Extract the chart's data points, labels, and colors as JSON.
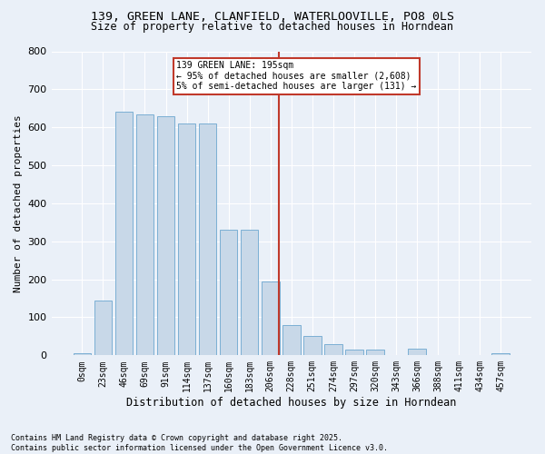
{
  "title_line1": "139, GREEN LANE, CLANFIELD, WATERLOOVILLE, PO8 0LS",
  "title_line2": "Size of property relative to detached houses in Horndean",
  "xlabel": "Distribution of detached houses by size in Horndean",
  "ylabel": "Number of detached properties",
  "footnote_line1": "Contains HM Land Registry data © Crown copyright and database right 2025.",
  "footnote_line2": "Contains public sector information licensed under the Open Government Licence v3.0.",
  "bar_labels": [
    "0sqm",
    "23sqm",
    "46sqm",
    "69sqm",
    "91sqm",
    "114sqm",
    "137sqm",
    "160sqm",
    "183sqm",
    "206sqm",
    "228sqm",
    "251sqm",
    "274sqm",
    "297sqm",
    "320sqm",
    "343sqm",
    "366sqm",
    "388sqm",
    "411sqm",
    "434sqm",
    "457sqm"
  ],
  "bar_values": [
    5,
    145,
    640,
    635,
    630,
    610,
    610,
    330,
    330,
    195,
    80,
    50,
    30,
    15,
    15,
    0,
    18,
    0,
    0,
    0,
    5
  ],
  "bar_color": "#c8d8e8",
  "bar_edge_color": "#7bafd4",
  "bg_color": "#eaf0f8",
  "grid_color": "#ffffff",
  "vline_x": 9.42,
  "vline_color": "#c0392b",
  "annotation_text": "139 GREEN LANE: 195sqm\n← 95% of detached houses are smaller (2,608)\n5% of semi-detached houses are larger (131) →",
  "annotation_box_color": "#ffffff",
  "annotation_box_edge_color": "#c0392b",
  "ylim": [
    0,
    800
  ],
  "yticks": [
    0,
    100,
    200,
    300,
    400,
    500,
    600,
    700,
    800
  ]
}
